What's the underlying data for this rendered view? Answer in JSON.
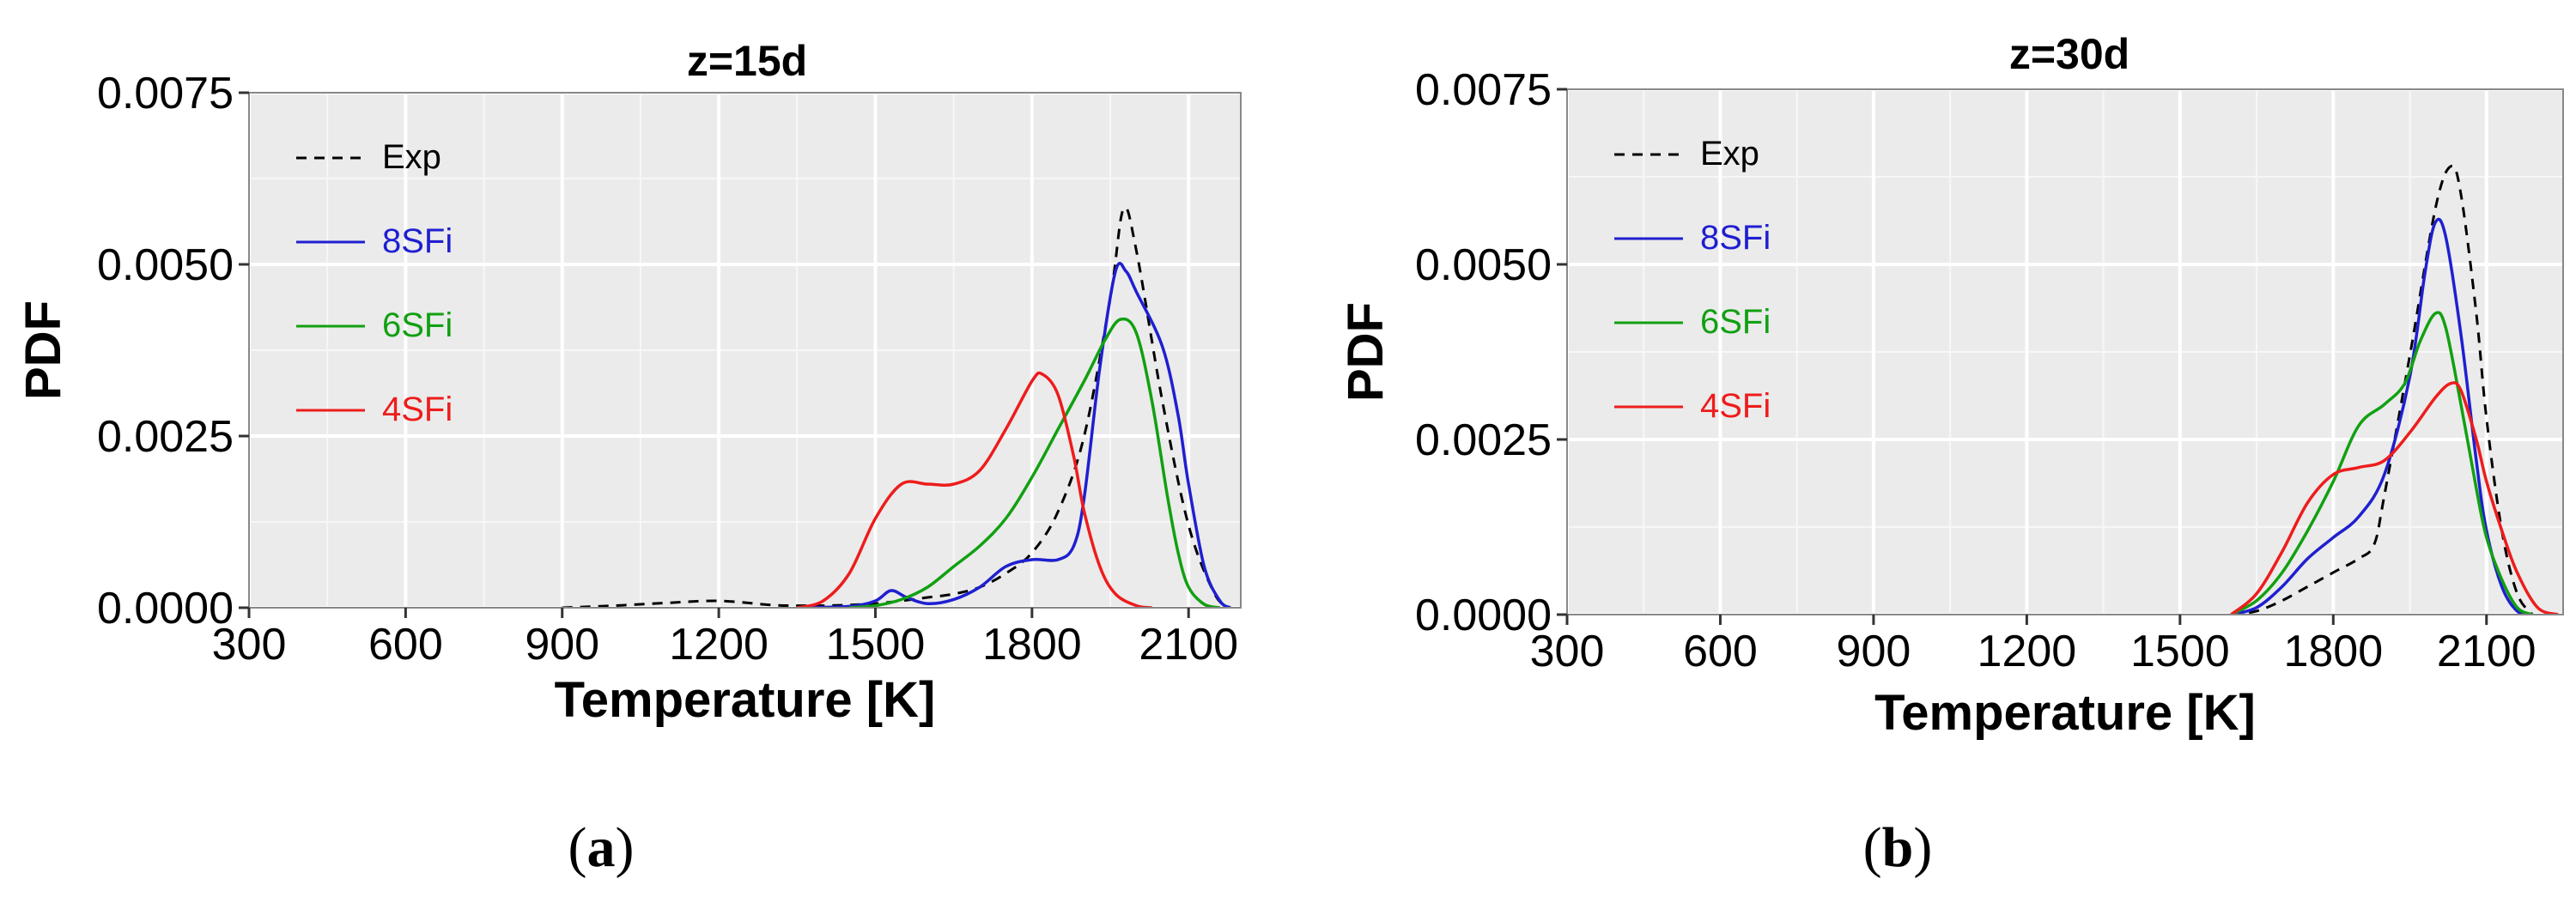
{
  "chart_data": [
    {
      "type": "line",
      "panel_label": "a",
      "title": "z=15d",
      "xlabel": "Temperature [K]",
      "ylabel": "PDF",
      "xlim": [
        300,
        2200
      ],
      "ylim": [
        0,
        0.0075
      ],
      "x_ticks": [
        300,
        600,
        900,
        1200,
        1500,
        1800,
        2100
      ],
      "x_tick_labels": [
        "300",
        "600",
        "900",
        "1200",
        "1500",
        "1800",
        "2100"
      ],
      "y_ticks": [
        0,
        0.0025,
        0.005,
        0.0075
      ],
      "y_tick_labels": [
        "0.0000",
        "0.0025",
        "0.0050",
        "0.0075"
      ],
      "grid": true,
      "legend_position": "top-left",
      "series": [
        {
          "name": "Exp",
          "color": "#000000",
          "dash": true,
          "x": [
            900,
            1000,
            1100,
            1200,
            1300,
            1350,
            1400,
            1450,
            1500,
            1550,
            1600,
            1650,
            1700,
            1750,
            1800,
            1850,
            1900,
            1950,
            1975,
            2000,
            2050,
            2100,
            2150,
            2180
          ],
          "y": [
            0,
            3e-05,
            7e-05,
            0.0001,
            4e-05,
            3e-05,
            3e-05,
            4e-05,
            6e-05,
            0.0001,
            0.00015,
            0.0002,
            0.0003,
            0.0005,
            0.0008,
            0.0014,
            0.0025,
            0.0045,
            0.0058,
            0.0052,
            0.003,
            0.0012,
            0.0002,
            0
          ]
        },
        {
          "name": "8SFi",
          "color": "#1f1fd0",
          "dash": false,
          "x": [
            1350,
            1450,
            1500,
            1530,
            1560,
            1600,
            1650,
            1700,
            1750,
            1800,
            1850,
            1880,
            1900,
            1930,
            1960,
            1980,
            2000,
            2050,
            2080,
            2100,
            2130,
            2160,
            2180
          ],
          "y": [
            0,
            2e-05,
            0.0001,
            0.00025,
            0.00015,
            6e-05,
            0.00012,
            0.0003,
            0.0006,
            0.0007,
            0.0007,
            0.0009,
            0.0016,
            0.0035,
            0.0049,
            0.0049,
            0.0046,
            0.0038,
            0.0028,
            0.0018,
            0.0006,
            0.0001,
            0
          ]
        },
        {
          "name": "6SFi",
          "color": "#11a011",
          "dash": false,
          "x": [
            1450,
            1500,
            1550,
            1600,
            1650,
            1700,
            1750,
            1800,
            1850,
            1900,
            1940,
            1970,
            2000,
            2030,
            2060,
            2080,
            2100,
            2130,
            2160
          ],
          "y": [
            0,
            3e-05,
            0.00012,
            0.0003,
            0.0006,
            0.0009,
            0.0013,
            0.0019,
            0.0026,
            0.0033,
            0.0039,
            0.0042,
            0.004,
            0.003,
            0.0016,
            0.0008,
            0.0003,
            5e-05,
            0
          ]
        },
        {
          "name": "4SFi",
          "color": "#ee1c1c",
          "dash": false,
          "x": [
            1350,
            1400,
            1450,
            1500,
            1550,
            1600,
            1650,
            1700,
            1750,
            1800,
            1820,
            1850,
            1880,
            1900,
            1930,
            1960,
            2000,
            2030
          ],
          "y": [
            0,
            0.0001,
            0.0005,
            0.0013,
            0.0018,
            0.0018,
            0.0018,
            0.002,
            0.0026,
            0.0033,
            0.0034,
            0.0031,
            0.0022,
            0.0014,
            0.0006,
            0.0002,
            3e-05,
            0
          ]
        }
      ]
    },
    {
      "type": "line",
      "panel_label": "b",
      "title": "z=30d",
      "xlabel": "Temperature [K]",
      "ylabel": "PDF",
      "xlim": [
        300,
        2250
      ],
      "ylim": [
        0,
        0.0075
      ],
      "x_ticks": [
        300,
        600,
        900,
        1200,
        1500,
        1800,
        2100
      ],
      "x_tick_labels": [
        "300",
        "600",
        "900",
        "1200",
        "1500",
        "1800",
        "2100"
      ],
      "y_ticks": [
        0,
        0.0025,
        0.005,
        0.0075
      ],
      "y_tick_labels": [
        "0.0000",
        "0.0025",
        "0.0050",
        "0.0075"
      ],
      "grid": true,
      "legend_position": "top-left",
      "series": [
        {
          "name": "Exp",
          "color": "#000000",
          "dash": true,
          "x": [
            1600,
            1650,
            1700,
            1750,
            1800,
            1850,
            1880,
            1900,
            1950,
            2000,
            2030,
            2050,
            2080,
            2100,
            2130,
            2160,
            2190
          ],
          "y": [
            0,
            5e-05,
            0.0002,
            0.0004,
            0.0006,
            0.0008,
            0.001,
            0.0017,
            0.0037,
            0.0058,
            0.0064,
            0.006,
            0.0043,
            0.0028,
            0.0012,
            0.0003,
            0
          ]
        },
        {
          "name": "8SFi",
          "color": "#1f1fd0",
          "dash": false,
          "x": [
            1600,
            1650,
            1700,
            1750,
            1800,
            1850,
            1900,
            1950,
            1980,
            2000,
            2020,
            2050,
            2080,
            2100,
            2130,
            2160,
            2190
          ],
          "y": [
            0,
            0.0001,
            0.0004,
            0.0008,
            0.0011,
            0.0014,
            0.002,
            0.0034,
            0.0049,
            0.0056,
            0.0054,
            0.004,
            0.0022,
            0.0012,
            0.0004,
            5e-05,
            0
          ]
        },
        {
          "name": "6SFi",
          "color": "#11a011",
          "dash": false,
          "x": [
            1600,
            1650,
            1700,
            1750,
            1800,
            1850,
            1900,
            1940,
            1970,
            2000,
            2020,
            2050,
            2080,
            2100,
            2130,
            2160,
            2190
          ],
          "y": [
            0,
            0.0002,
            0.0006,
            0.0012,
            0.0019,
            0.0027,
            0.003,
            0.0033,
            0.0039,
            0.0043,
            0.0041,
            0.003,
            0.0018,
            0.0011,
            0.0005,
            0.0001,
            0
          ]
        },
        {
          "name": "4SFi",
          "color": "#ee1c1c",
          "dash": false,
          "x": [
            1600,
            1650,
            1700,
            1750,
            1800,
            1850,
            1900,
            1950,
            2000,
            2030,
            2050,
            2080,
            2100,
            2130,
            2160,
            2200,
            2240
          ],
          "y": [
            0,
            0.0003,
            0.0009,
            0.0016,
            0.002,
            0.0021,
            0.0022,
            0.0026,
            0.0031,
            0.0033,
            0.0032,
            0.0025,
            0.0019,
            0.0012,
            0.0006,
            0.0001,
            0
          ]
        }
      ]
    }
  ]
}
